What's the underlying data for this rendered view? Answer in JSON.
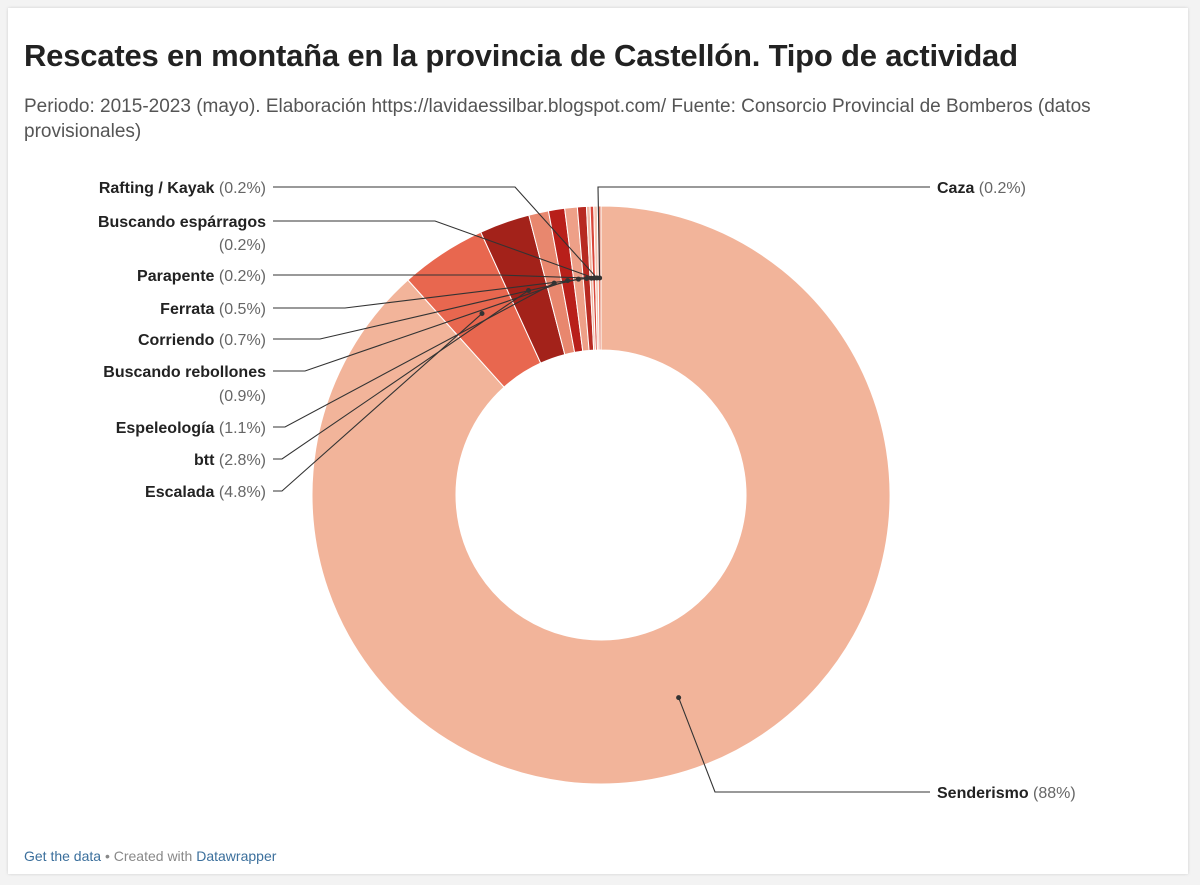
{
  "title": "Rescates en montaña en la provincia de Castellón. Tipo de actividad",
  "subtitle": "Periodo: 2015-2023 (mayo). Elaboración https://lavidaessilbar.blogspot.com/ Fuente: Consorcio Provincial de Bomberos (datos provisionales)",
  "footer": {
    "get_data": "Get the data",
    "separator": " • Created with ",
    "datawrapper": "Datawrapper"
  },
  "chart_data": {
    "type": "pie",
    "donut": true,
    "slices": [
      {
        "label": "Senderismo",
        "value": 88,
        "display": "(88%)",
        "color": "#f2b49a"
      },
      {
        "label": "Escalada",
        "value": 4.8,
        "display": "(4.8%)",
        "color": "#e8674f"
      },
      {
        "label": "btt",
        "value": 2.8,
        "display": "(2.8%)",
        "color": "#a3221a"
      },
      {
        "label": "Espeleología",
        "value": 1.1,
        "display": "(1.1%)",
        "color": "#e8876e"
      },
      {
        "label": "Buscando rebollones",
        "value": 0.9,
        "display": "(0.9%)",
        "color": "#b81f1a"
      },
      {
        "label": "Corriendo",
        "value": 0.7,
        "display": "(0.7%)",
        "color": "#eea088"
      },
      {
        "label": "Ferrata",
        "value": 0.5,
        "display": "(0.5%)",
        "color": "#b72a22"
      },
      {
        "label": "Parapente",
        "value": 0.2,
        "display": "(0.2%)",
        "color": "#f0b8a4"
      },
      {
        "label": "Buscando espárragos",
        "value": 0.2,
        "display": "(0.2%)",
        "color": "#d9473a"
      },
      {
        "label": "Rafting / Kayak",
        "value": 0.2,
        "display": "(0.2%)",
        "color": "#f4c6b4"
      },
      {
        "label": "Caza",
        "value": 0.2,
        "display": "(0.2%)",
        "color": "#e07a66"
      }
    ]
  }
}
